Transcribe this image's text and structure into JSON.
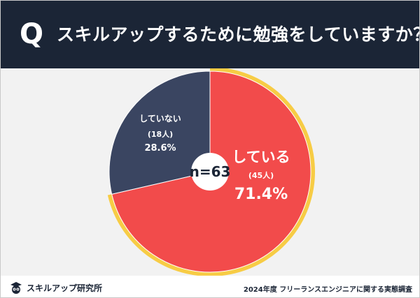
{
  "header": {
    "icon": "Q",
    "question": "スキルアップするために勉強をしていますか？"
  },
  "chart_data": {
    "type": "pie",
    "center_label": "n=63",
    "slices": [
      {
        "label": "している",
        "count_label": "(45人)",
        "percent_label": "71.4%",
        "value": 71.4,
        "color": "#f24b4b",
        "highlight_ring": "#f7cc45"
      },
      {
        "label": "していない",
        "count_label": "(18人)",
        "percent_label": "28.6%",
        "value": 28.6,
        "color": "#3a4561"
      }
    ]
  },
  "footer": {
    "logo_text": "スキルアップ研究所",
    "logo_icon": "owl-icon",
    "survey_note": "2024年度 フリーランスエンジニアに関する実態調査"
  }
}
